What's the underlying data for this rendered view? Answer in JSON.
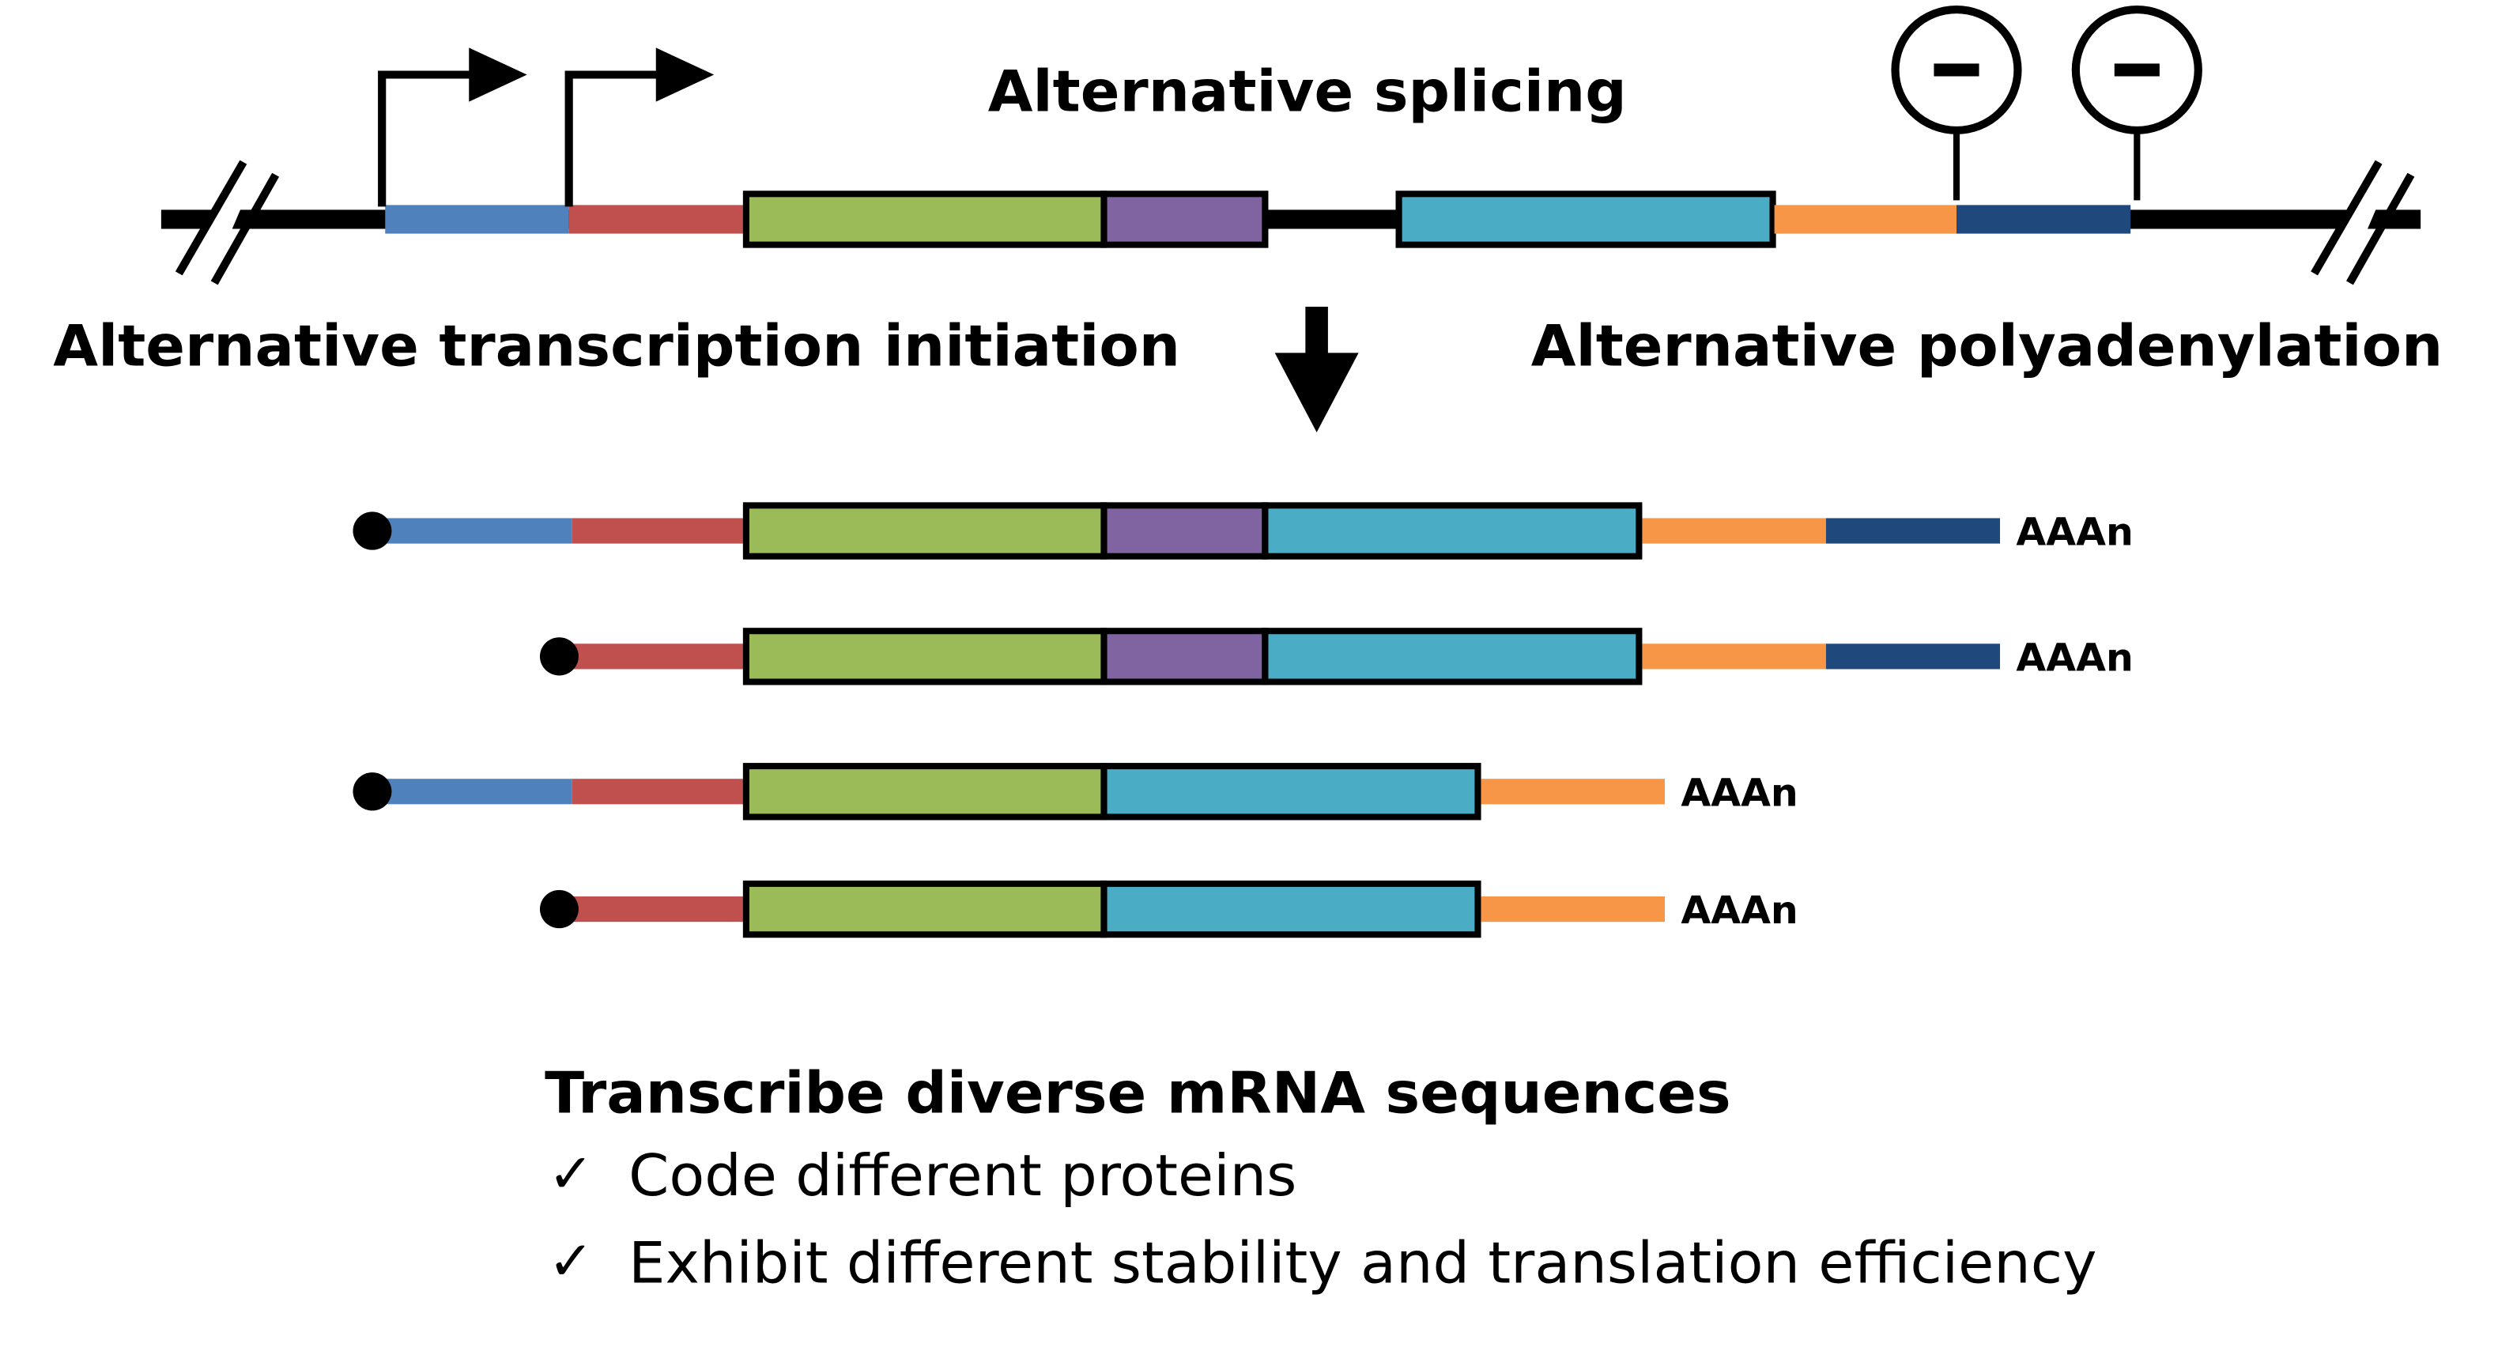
{
  "labels": {
    "splicing": "Alternative splicing",
    "initiation": "Alternative transcription initiation",
    "polyadenylation": "Alternative polyadenylation",
    "polya_tail": "AAAn",
    "summary_title": "Transcribe diverse mRNA sequences",
    "check_mark": "✓",
    "bullets": [
      "Code different proteins",
      "Exhibit different stability and translation efficiency"
    ],
    "inhibitor_symbol": "−"
  },
  "colors": {
    "tss1_utr": "#4F81BD",
    "tss2_utr": "#C0504D",
    "exon1": "#9BBB59",
    "alt_exon": "#8064A2",
    "exon2": "#4BACC6",
    "utr3_proximal": "#F79646",
    "utr3_distal": "#1F497D",
    "line": "#000000"
  },
  "transcripts": [
    {
      "tss": 1,
      "alt_exon": true,
      "polya": "distal"
    },
    {
      "tss": 2,
      "alt_exon": true,
      "polya": "distal"
    },
    {
      "tss": 1,
      "alt_exon": false,
      "polya": "proximal"
    },
    {
      "tss": 2,
      "alt_exon": false,
      "polya": "proximal"
    }
  ]
}
